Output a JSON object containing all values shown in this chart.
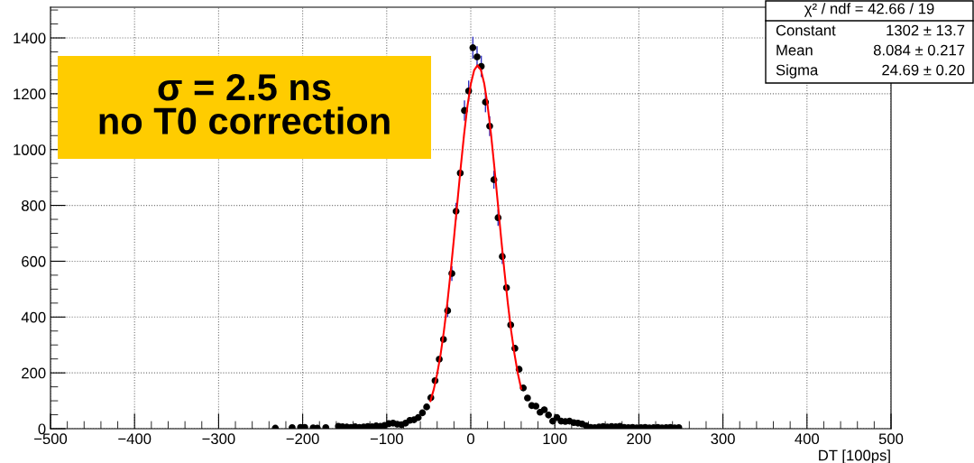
{
  "chart_data": {
    "type": "scatter",
    "xlabel": "DT [100ps]",
    "xlim": [
      -500,
      500
    ],
    "ylim": [
      0,
      1510
    ],
    "xticks": [
      {
        "value": -500,
        "label": "−500"
      },
      {
        "value": -400,
        "label": "−400"
      },
      {
        "value": -300,
        "label": "−300"
      },
      {
        "value": -200,
        "label": "−200"
      },
      {
        "value": -100,
        "label": "−100"
      },
      0,
      100,
      200,
      300,
      400,
      500
    ],
    "yticks": [
      0,
      200,
      400,
      600,
      800,
      1000,
      1200,
      1400
    ],
    "grid": true,
    "marker": "circle",
    "series": [
      {
        "color": "#000000",
        "x": [
          -232.5,
          -212.5,
          -202.5,
          -197.5,
          -187.5,
          -182.5,
          -172.5,
          -157.5,
          -152.5,
          -147.5,
          -142.5,
          -137.5,
          -132.5,
          -127.5,
          -122.5,
          -117.5,
          -112.5,
          -107.5,
          -102.5,
          -97.5,
          -92.5,
          -87.5,
          -82.5,
          -77.5,
          -72.5,
          -67.5,
          -62.5,
          -57.5,
          -52.5,
          -47.5,
          -42.5,
          -37.5,
          -32.5,
          -27.5,
          -22.5,
          -17.5,
          -12.5,
          -7.5,
          -2.5,
          2.5,
          7.5,
          12.5,
          17.5,
          22.5,
          27.5,
          32.5,
          37.5,
          42.5,
          47.5,
          52.5,
          57.5,
          62.5,
          67.5,
          72.5,
          77.5,
          82.5,
          87.5,
          92.5,
          97.5,
          102.5,
          107.5,
          112.5,
          117.5,
          122.5,
          127.5,
          132.5,
          137.5,
          142.5,
          147.5,
          152.5,
          157.5,
          162.5,
          167.5,
          172.5,
          177.5,
          182.5,
          187.5,
          192.5,
          197.5,
          202.5,
          207.5,
          212.5,
          217.5,
          222.5,
          227.5,
          232.5,
          237.5,
          242.5,
          247.5
        ],
        "values": [
          2,
          4,
          5,
          5,
          3,
          2,
          4,
          9,
          7,
          6,
          5,
          7,
          5,
          6,
          8,
          7,
          10,
          9,
          12,
          18,
          20,
          16,
          14,
          20,
          30,
          32,
          40,
          57,
          78,
          111,
          172,
          249,
          320,
          423,
          556,
          779,
          916,
          1140,
          1210,
          1365,
          1332,
          1298,
          1170,
          1084,
          892,
          756,
          617,
          505,
          372,
          288,
          213,
          146,
          110,
          83,
          81,
          59,
          68,
          49,
          27,
          40,
          27,
          26,
          27,
          22,
          20,
          17,
          10,
          5,
          4,
          6,
          8,
          6,
          8,
          7,
          9,
          5,
          4,
          5,
          3,
          4,
          5,
          3,
          4,
          5,
          3,
          4,
          5,
          3,
          4
        ],
        "errors": [
          null,
          null,
          null,
          null,
          null,
          null,
          null,
          null,
          null,
          null,
          null,
          null,
          null,
          null,
          null,
          null,
          null,
          null,
          null,
          null,
          null,
          null,
          null,
          null,
          null,
          null,
          null,
          null,
          null,
          null,
          null,
          null,
          null,
          21,
          24,
          28,
          null,
          34,
          35,
          37,
          36,
          36,
          34,
          33,
          30,
          27,
          25,
          null,
          null,
          null,
          null,
          null,
          null,
          null,
          null,
          null,
          null,
          null,
          null,
          null,
          null,
          null,
          null,
          null,
          null,
          null,
          null,
          null,
          null,
          null,
          null,
          null,
          null,
          null,
          null,
          null,
          null,
          null,
          null,
          null,
          null,
          null,
          null,
          null,
          null,
          null,
          null,
          null,
          null
        ]
      },
      {
        "type": "line",
        "color": "#ff0000",
        "marker": "none",
        "x": [
          -48,
          -44,
          -40,
          -36,
          -32,
          -28,
          -24,
          -20,
          -16,
          -12,
          -8,
          -4,
          0,
          4,
          8,
          12,
          16,
          20,
          24,
          28,
          32,
          36,
          40,
          44,
          48,
          52,
          56,
          60
        ],
        "values": [
          99,
          141,
          196,
          264,
          349,
          447,
          560,
          682,
          809,
          935,
          1053,
          1155,
          1234,
          1284,
          1302,
          1286,
          1237,
          1159,
          1058,
          940,
          814,
          687,
          565,
          452,
          352,
          268,
          198,
          143
        ]
      }
    ],
    "annotations": [
      "σ = 2.5 ns\nno T0 correction",
      "χ² / ndf = 42.66 / 19",
      "Constant",
      "1302 ± 13.7",
      "Mean",
      "8.084 ± 0.217",
      "Sigma",
      "24.69 ± 0.20"
    ]
  }
}
